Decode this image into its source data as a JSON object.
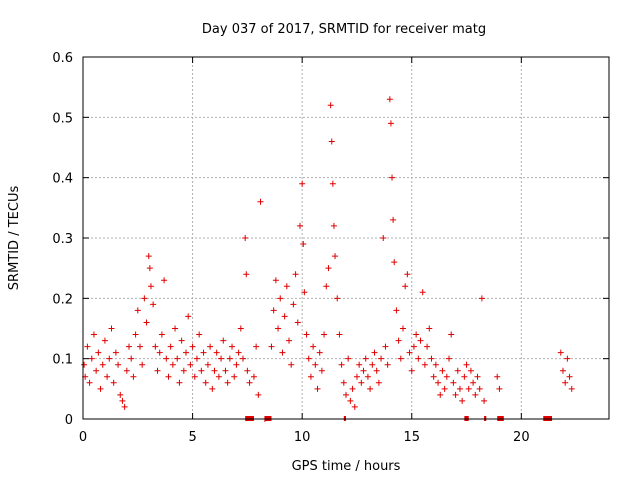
{
  "chart_data": {
    "type": "scatter",
    "title": "Day 037 of 2017, SRMTID for receiver matg",
    "xlabel": "GPS time / hours",
    "ylabel": "SRMTID / TECUs",
    "xlim": [
      0,
      24
    ],
    "ylim": [
      0,
      0.6
    ],
    "x_ticks": [
      0,
      5,
      10,
      15,
      20
    ],
    "y_ticks": [
      0,
      0.1,
      0.2,
      0.3,
      0.4,
      0.5,
      0.6
    ],
    "x_tick_labels": [
      "0",
      "5",
      "10",
      "15",
      "20"
    ],
    "y_tick_labels": [
      "0",
      "0.1",
      "0.2",
      "0.3",
      "0.4",
      "0.5",
      "0.6"
    ],
    "grid": true,
    "legend": "none",
    "marker": "plus",
    "color": "#e00000",
    "series": [
      {
        "name": "",
        "points": [
          [
            0.05,
            0.09
          ],
          [
            0.1,
            0.07
          ],
          [
            0.2,
            0.12
          ],
          [
            0.3,
            0.06
          ],
          [
            0.4,
            0.1
          ],
          [
            0.5,
            0.14
          ],
          [
            0.6,
            0.08
          ],
          [
            0.7,
            0.11
          ],
          [
            0.8,
            0.05
          ],
          [
            0.9,
            0.09
          ],
          [
            1.0,
            0.13
          ],
          [
            1.1,
            0.07
          ],
          [
            1.2,
            0.1
          ],
          [
            1.3,
            0.15
          ],
          [
            1.4,
            0.06
          ],
          [
            1.5,
            0.11
          ],
          [
            1.6,
            0.09
          ],
          [
            1.7,
            0.04
          ],
          [
            1.8,
            0.03
          ],
          [
            1.9,
            0.02
          ],
          [
            2.0,
            0.08
          ],
          [
            2.1,
            0.12
          ],
          [
            2.2,
            0.1
          ],
          [
            2.3,
            0.07
          ],
          [
            2.4,
            0.14
          ],
          [
            2.5,
            0.18
          ],
          [
            2.6,
            0.12
          ],
          [
            2.7,
            0.09
          ],
          [
            2.8,
            0.2
          ],
          [
            2.9,
            0.16
          ],
          [
            3.0,
            0.27
          ],
          [
            3.05,
            0.25
          ],
          [
            3.1,
            0.22
          ],
          [
            3.2,
            0.19
          ],
          [
            3.3,
            0.12
          ],
          [
            3.4,
            0.08
          ],
          [
            3.5,
            0.11
          ],
          [
            3.6,
            0.14
          ],
          [
            3.7,
            0.23
          ],
          [
            3.8,
            0.1
          ],
          [
            3.9,
            0.07
          ],
          [
            4.0,
            0.12
          ],
          [
            4.1,
            0.09
          ],
          [
            4.2,
            0.15
          ],
          [
            4.3,
            0.1
          ],
          [
            4.4,
            0.06
          ],
          [
            4.5,
            0.13
          ],
          [
            4.6,
            0.08
          ],
          [
            4.7,
            0.11
          ],
          [
            4.8,
            0.17
          ],
          [
            4.9,
            0.09
          ],
          [
            5.0,
            0.12
          ],
          [
            5.1,
            0.07
          ],
          [
            5.2,
            0.1
          ],
          [
            5.3,
            0.14
          ],
          [
            5.4,
            0.08
          ],
          [
            5.5,
            0.11
          ],
          [
            5.6,
            0.06
          ],
          [
            5.7,
            0.09
          ],
          [
            5.8,
            0.12
          ],
          [
            5.9,
            0.05
          ],
          [
            6.0,
            0.08
          ],
          [
            6.1,
            0.11
          ],
          [
            6.2,
            0.07
          ],
          [
            6.3,
            0.1
          ],
          [
            6.4,
            0.13
          ],
          [
            6.5,
            0.08
          ],
          [
            6.6,
            0.06
          ],
          [
            6.7,
            0.1
          ],
          [
            6.8,
            0.12
          ],
          [
            6.9,
            0.07
          ],
          [
            7.0,
            0.09
          ],
          [
            7.1,
            0.11
          ],
          [
            7.2,
            0.15
          ],
          [
            7.3,
            0.1
          ],
          [
            7.4,
            0.3
          ],
          [
            7.45,
            0.24
          ],
          [
            7.5,
            0.08
          ],
          [
            7.6,
            0.06
          ],
          [
            7.8,
            0.07
          ],
          [
            7.9,
            0.12
          ],
          [
            8.0,
            0.04
          ],
          [
            8.1,
            0.36
          ],
          [
            8.3,
            0.0
          ],
          [
            8.6,
            0.12
          ],
          [
            8.7,
            0.18
          ],
          [
            8.8,
            0.23
          ],
          [
            8.9,
            0.15
          ],
          [
            9.0,
            0.2
          ],
          [
            9.1,
            0.11
          ],
          [
            9.2,
            0.17
          ],
          [
            9.3,
            0.22
          ],
          [
            9.4,
            0.13
          ],
          [
            9.5,
            0.09
          ],
          [
            9.6,
            0.19
          ],
          [
            9.7,
            0.24
          ],
          [
            9.8,
            0.16
          ],
          [
            9.9,
            0.32
          ],
          [
            10.0,
            0.39
          ],
          [
            10.05,
            0.29
          ],
          [
            10.1,
            0.21
          ],
          [
            10.2,
            0.14
          ],
          [
            10.3,
            0.1
          ],
          [
            10.4,
            0.07
          ],
          [
            10.5,
            0.12
          ],
          [
            10.6,
            0.09
          ],
          [
            10.7,
            0.05
          ],
          [
            10.8,
            0.11
          ],
          [
            10.9,
            0.08
          ],
          [
            11.0,
            0.14
          ],
          [
            11.1,
            0.22
          ],
          [
            11.2,
            0.25
          ],
          [
            11.3,
            0.52
          ],
          [
            11.35,
            0.46
          ],
          [
            11.4,
            0.39
          ],
          [
            11.45,
            0.32
          ],
          [
            11.5,
            0.27
          ],
          [
            11.6,
            0.2
          ],
          [
            11.7,
            0.14
          ],
          [
            11.8,
            0.09
          ],
          [
            11.9,
            0.06
          ],
          [
            12.0,
            0.04
          ],
          [
            12.1,
            0.1
          ],
          [
            12.2,
            0.03
          ],
          [
            12.3,
            0.05
          ],
          [
            12.4,
            0.02
          ],
          [
            12.5,
            0.07
          ],
          [
            12.6,
            0.09
          ],
          [
            12.7,
            0.06
          ],
          [
            12.8,
            0.08
          ],
          [
            12.9,
            0.1
          ],
          [
            13.0,
            0.07
          ],
          [
            13.1,
            0.05
          ],
          [
            13.2,
            0.09
          ],
          [
            13.3,
            0.11
          ],
          [
            13.4,
            0.08
          ],
          [
            13.5,
            0.06
          ],
          [
            13.6,
            0.1
          ],
          [
            13.7,
            0.3
          ],
          [
            13.8,
            0.12
          ],
          [
            13.9,
            0.09
          ],
          [
            14.0,
            0.53
          ],
          [
            14.05,
            0.49
          ],
          [
            14.1,
            0.4
          ],
          [
            14.15,
            0.33
          ],
          [
            14.2,
            0.26
          ],
          [
            14.3,
            0.18
          ],
          [
            14.4,
            0.13
          ],
          [
            14.5,
            0.1
          ],
          [
            14.6,
            0.15
          ],
          [
            14.7,
            0.22
          ],
          [
            14.8,
            0.24
          ],
          [
            14.9,
            0.11
          ],
          [
            15.0,
            0.08
          ],
          [
            15.1,
            0.12
          ],
          [
            15.2,
            0.14
          ],
          [
            15.3,
            0.1
          ],
          [
            15.4,
            0.13
          ],
          [
            15.5,
            0.21
          ],
          [
            15.6,
            0.09
          ],
          [
            15.7,
            0.12
          ],
          [
            15.8,
            0.15
          ],
          [
            15.9,
            0.1
          ],
          [
            16.0,
            0.07
          ],
          [
            16.1,
            0.09
          ],
          [
            16.2,
            0.06
          ],
          [
            16.3,
            0.04
          ],
          [
            16.4,
            0.08
          ],
          [
            16.5,
            0.05
          ],
          [
            16.6,
            0.07
          ],
          [
            16.7,
            0.1
          ],
          [
            16.8,
            0.14
          ],
          [
            16.9,
            0.06
          ],
          [
            17.0,
            0.04
          ],
          [
            17.1,
            0.08
          ],
          [
            17.2,
            0.05
          ],
          [
            17.3,
            0.03
          ],
          [
            17.4,
            0.07
          ],
          [
            17.5,
            0.09
          ],
          [
            17.6,
            0.05
          ],
          [
            17.7,
            0.08
          ],
          [
            17.8,
            0.06
          ],
          [
            17.9,
            0.04
          ],
          [
            18.0,
            0.07
          ],
          [
            18.1,
            0.05
          ],
          [
            18.2,
            0.2
          ],
          [
            18.3,
            0.03
          ],
          [
            18.9,
            0.07
          ],
          [
            19.0,
            0.05
          ],
          [
            21.8,
            0.11
          ],
          [
            21.9,
            0.08
          ],
          [
            22.0,
            0.06
          ],
          [
            22.1,
            0.1
          ],
          [
            22.2,
            0.07
          ],
          [
            22.3,
            0.05
          ]
        ]
      }
    ],
    "zero_band": [
      [
        7.4,
        7.8
      ],
      [
        8.3,
        8.6
      ],
      [
        11.9,
        12.0
      ],
      [
        17.4,
        17.6
      ],
      [
        18.3,
        18.4
      ],
      [
        18.9,
        19.2
      ],
      [
        21.0,
        21.4
      ]
    ]
  }
}
